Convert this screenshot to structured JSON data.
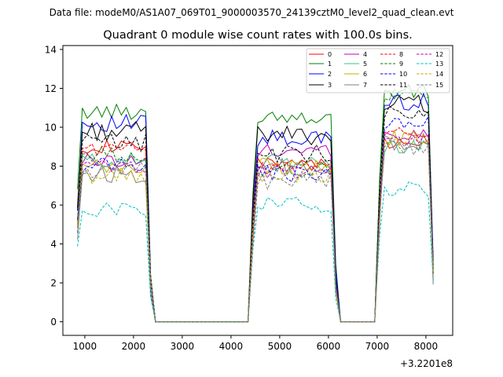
{
  "figure": {
    "suptitle": "Data file: modeM0/AS1A07_069T01_9000003570_24139cztM0_level2_quad_clean.evt"
  },
  "chart_data": {
    "type": "line",
    "title": "Quadrant 0 module wise count rates with 100.0s bins.",
    "xlabel": "",
    "ylabel": "",
    "x_offset_label": "+3.2201e8",
    "xlim": [
      550,
      8550
    ],
    "ylim": [
      -0.7,
      14.2
    ],
    "xticks": [
      1000,
      2000,
      3000,
      4000,
      5000,
      6000,
      7000,
      8000
    ],
    "xtick_labels": [
      "1000",
      "2000",
      "3000",
      "4000",
      "5000",
      "6000",
      "7000",
      "8000"
    ],
    "yticks": [
      0,
      2,
      4,
      6,
      8,
      10,
      12,
      14
    ],
    "ytick_labels": [
      "0",
      "2",
      "4",
      "6",
      "8",
      "10",
      "12",
      "14"
    ],
    "legend_position": "top-right",
    "segments": [
      {
        "start": 850,
        "end": 2350
      },
      {
        "start": 4450,
        "end": 6150
      },
      {
        "start": 7050,
        "end": 8150
      }
    ],
    "x_step": 100,
    "series": [
      {
        "name": "0",
        "color": "#ff0000",
        "dash": "solid",
        "levels": [
          9.0,
          8.2,
          9.2
        ]
      },
      {
        "name": "1",
        "color": "#008000",
        "dash": "solid",
        "levels": [
          10.8,
          10.6,
          11.8
        ]
      },
      {
        "name": "2",
        "color": "#0000ff",
        "dash": "solid",
        "levels": [
          10.2,
          9.4,
          11.3
        ]
      },
      {
        "name": "3",
        "color": "#000000",
        "dash": "solid",
        "levels": [
          9.8,
          9.6,
          11.2
        ]
      },
      {
        "name": "4",
        "color": "#bf00bf",
        "dash": "solid",
        "levels": [
          8.3,
          8.8,
          9.6
        ]
      },
      {
        "name": "5",
        "color": "#40c080",
        "dash": "solid",
        "levels": [
          8.3,
          8.2,
          9.0
        ]
      },
      {
        "name": "6",
        "color": "#c0b000",
        "dash": "solid",
        "levels": [
          7.9,
          8.0,
          9.4
        ]
      },
      {
        "name": "7",
        "color": "#808080",
        "dash": "solid",
        "levels": [
          7.6,
          7.9,
          9.3
        ]
      },
      {
        "name": "8",
        "color": "#ff0000",
        "dash": "dashed",
        "levels": [
          8.9,
          7.9,
          9.7
        ]
      },
      {
        "name": "9",
        "color": "#008000",
        "dash": "dashed",
        "levels": [
          8.6,
          7.8,
          11.6
        ]
      },
      {
        "name": "10",
        "color": "#0000ff",
        "dash": "dashed",
        "levels": [
          8.1,
          7.6,
          10.2
        ]
      },
      {
        "name": "11",
        "color": "#000000",
        "dash": "dashed",
        "levels": [
          9.2,
          8.6,
          10.6
        ]
      },
      {
        "name": "12",
        "color": "#bf00bf",
        "dash": "dashed",
        "levels": [
          8.0,
          7.7,
          9.3
        ]
      },
      {
        "name": "13",
        "color": "#00bfbf",
        "dash": "dashed",
        "levels": [
          5.8,
          6.0,
          6.8
        ]
      },
      {
        "name": "14",
        "color": "#c0b000",
        "dash": "dashed",
        "levels": [
          7.5,
          7.5,
          9.2
        ]
      },
      {
        "name": "15",
        "color": "#808080",
        "dash": "dashed",
        "levels": [
          7.7,
          7.2,
          9.0
        ]
      }
    ]
  }
}
